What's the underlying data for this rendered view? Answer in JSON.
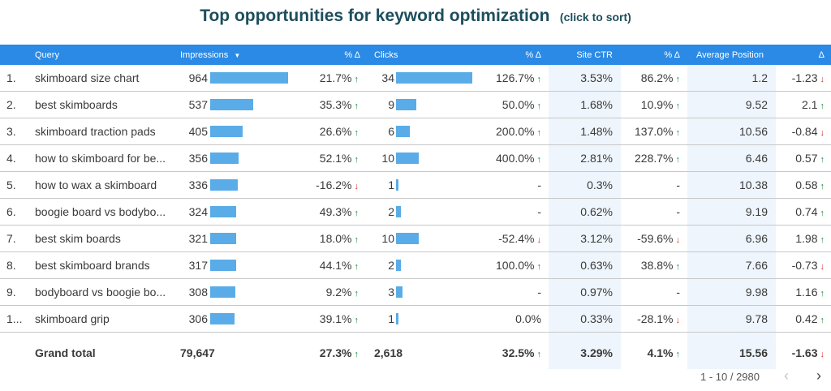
{
  "title": "Top opportunities for keyword optimization",
  "subtitle": "(click to sort)",
  "columns": {
    "query": "Query",
    "impressions": "Impressions",
    "sort_icon": "▼",
    "imp_delta": "% Δ",
    "clicks": "Clicks",
    "clicks_delta": "% Δ",
    "ctr": "Site CTR",
    "ctr_delta": "% Δ",
    "position": "Average Position",
    "pos_delta": "Δ"
  },
  "rows": [
    {
      "num": "1.",
      "query": "skimboard size chart",
      "impressions": "964",
      "imp_delta": "21.7%",
      "imp_dir": "up",
      "clicks": "34",
      "clicks_delta": "126.7%",
      "clicks_dir": "up",
      "ctr": "3.53%",
      "ctr_delta": "86.2%",
      "ctr_dir": "up",
      "position": "1.2",
      "pos_delta": "-1.23",
      "pos_dir": "down",
      "imp_bar": 1.0,
      "clicks_bar": 1.0
    },
    {
      "num": "2.",
      "query": "best skimboards",
      "impressions": "537",
      "imp_delta": "35.3%",
      "imp_dir": "up",
      "clicks": "9",
      "clicks_delta": "50.0%",
      "clicks_dir": "up",
      "ctr": "1.68%",
      "ctr_delta": "10.9%",
      "ctr_dir": "up",
      "position": "9.52",
      "pos_delta": "2.1",
      "pos_dir": "up",
      "imp_bar": 0.557,
      "clicks_bar": 0.265
    },
    {
      "num": "3.",
      "query": "skimboard traction pads",
      "impressions": "405",
      "imp_delta": "26.6%",
      "imp_dir": "up",
      "clicks": "6",
      "clicks_delta": "200.0%",
      "clicks_dir": "up",
      "ctr": "1.48%",
      "ctr_delta": "137.0%",
      "ctr_dir": "up",
      "position": "10.56",
      "pos_delta": "-0.84",
      "pos_dir": "down",
      "imp_bar": 0.42,
      "clicks_bar": 0.176
    },
    {
      "num": "4.",
      "query": "how to skimboard for be...",
      "impressions": "356",
      "imp_delta": "52.1%",
      "imp_dir": "up",
      "clicks": "10",
      "clicks_delta": "400.0%",
      "clicks_dir": "up",
      "ctr": "2.81%",
      "ctr_delta": "228.7%",
      "ctr_dir": "up",
      "position": "6.46",
      "pos_delta": "0.57",
      "pos_dir": "up",
      "imp_bar": 0.369,
      "clicks_bar": 0.294
    },
    {
      "num": "5.",
      "query": "how to wax a skimboard",
      "impressions": "336",
      "imp_delta": "-16.2%",
      "imp_dir": "down",
      "clicks": "1",
      "clicks_delta": "-",
      "clicks_dir": "",
      "ctr": "0.3%",
      "ctr_delta": "-",
      "ctr_dir": "",
      "position": "10.38",
      "pos_delta": "0.58",
      "pos_dir": "up",
      "imp_bar": 0.349,
      "clicks_bar": 0.03
    },
    {
      "num": "6.",
      "query": "boogie board vs bodybo...",
      "impressions": "324",
      "imp_delta": "49.3%",
      "imp_dir": "up",
      "clicks": "2",
      "clicks_delta": "-",
      "clicks_dir": "",
      "ctr": "0.62%",
      "ctr_delta": "-",
      "ctr_dir": "",
      "position": "9.19",
      "pos_delta": "0.74",
      "pos_dir": "up",
      "imp_bar": 0.336,
      "clicks_bar": 0.059
    },
    {
      "num": "7.",
      "query": "best skim boards",
      "impressions": "321",
      "imp_delta": "18.0%",
      "imp_dir": "up",
      "clicks": "10",
      "clicks_delta": "-52.4%",
      "clicks_dir": "down",
      "ctr": "3.12%",
      "ctr_delta": "-59.6%",
      "ctr_dir": "down",
      "position": "6.96",
      "pos_delta": "1.98",
      "pos_dir": "up",
      "imp_bar": 0.333,
      "clicks_bar": 0.294
    },
    {
      "num": "8.",
      "query": "best skimboard brands",
      "impressions": "317",
      "imp_delta": "44.1%",
      "imp_dir": "up",
      "clicks": "2",
      "clicks_delta": "100.0%",
      "clicks_dir": "up",
      "ctr": "0.63%",
      "ctr_delta": "38.8%",
      "ctr_dir": "up",
      "position": "7.66",
      "pos_delta": "-0.73",
      "pos_dir": "down",
      "imp_bar": 0.329,
      "clicks_bar": 0.059
    },
    {
      "num": "9.",
      "query": "bodyboard vs boogie bo...",
      "impressions": "308",
      "imp_delta": "9.2%",
      "imp_dir": "up",
      "clicks": "3",
      "clicks_delta": "-",
      "clicks_dir": "",
      "ctr": "0.97%",
      "ctr_delta": "-",
      "ctr_dir": "",
      "position": "9.98",
      "pos_delta": "1.16",
      "pos_dir": "up",
      "imp_bar": 0.32,
      "clicks_bar": 0.088
    },
    {
      "num": "1...",
      "query": "skimboard grip",
      "impressions": "306",
      "imp_delta": "39.1%",
      "imp_dir": "up",
      "clicks": "1",
      "clicks_delta": "0.0%",
      "clicks_dir": "",
      "ctr": "0.33%",
      "ctr_delta": "-28.1%",
      "ctr_dir": "down",
      "position": "9.78",
      "pos_delta": "0.42",
      "pos_dir": "up",
      "imp_bar": 0.317,
      "clicks_bar": 0.03
    }
  ],
  "total": {
    "label": "Grand total",
    "impressions": "79,647",
    "imp_delta": "27.3%",
    "imp_dir": "up",
    "clicks": "2,618",
    "clicks_delta": "32.5%",
    "clicks_dir": "up",
    "ctr": "3.29%",
    "ctr_delta": "4.1%",
    "ctr_dir": "up",
    "position": "15.56",
    "pos_delta": "-1.63",
    "pos_dir": "down"
  },
  "pager": {
    "range": "1 - 10 / 2980",
    "prev": "‹",
    "next": "›"
  },
  "arrows": {
    "up": "↑",
    "down": "↓"
  },
  "colors": {
    "header": "#2a8ae6",
    "bar": "#5aace8",
    "up": "#1e8e3e",
    "down": "#d93025",
    "title": "#1d4e5c"
  }
}
